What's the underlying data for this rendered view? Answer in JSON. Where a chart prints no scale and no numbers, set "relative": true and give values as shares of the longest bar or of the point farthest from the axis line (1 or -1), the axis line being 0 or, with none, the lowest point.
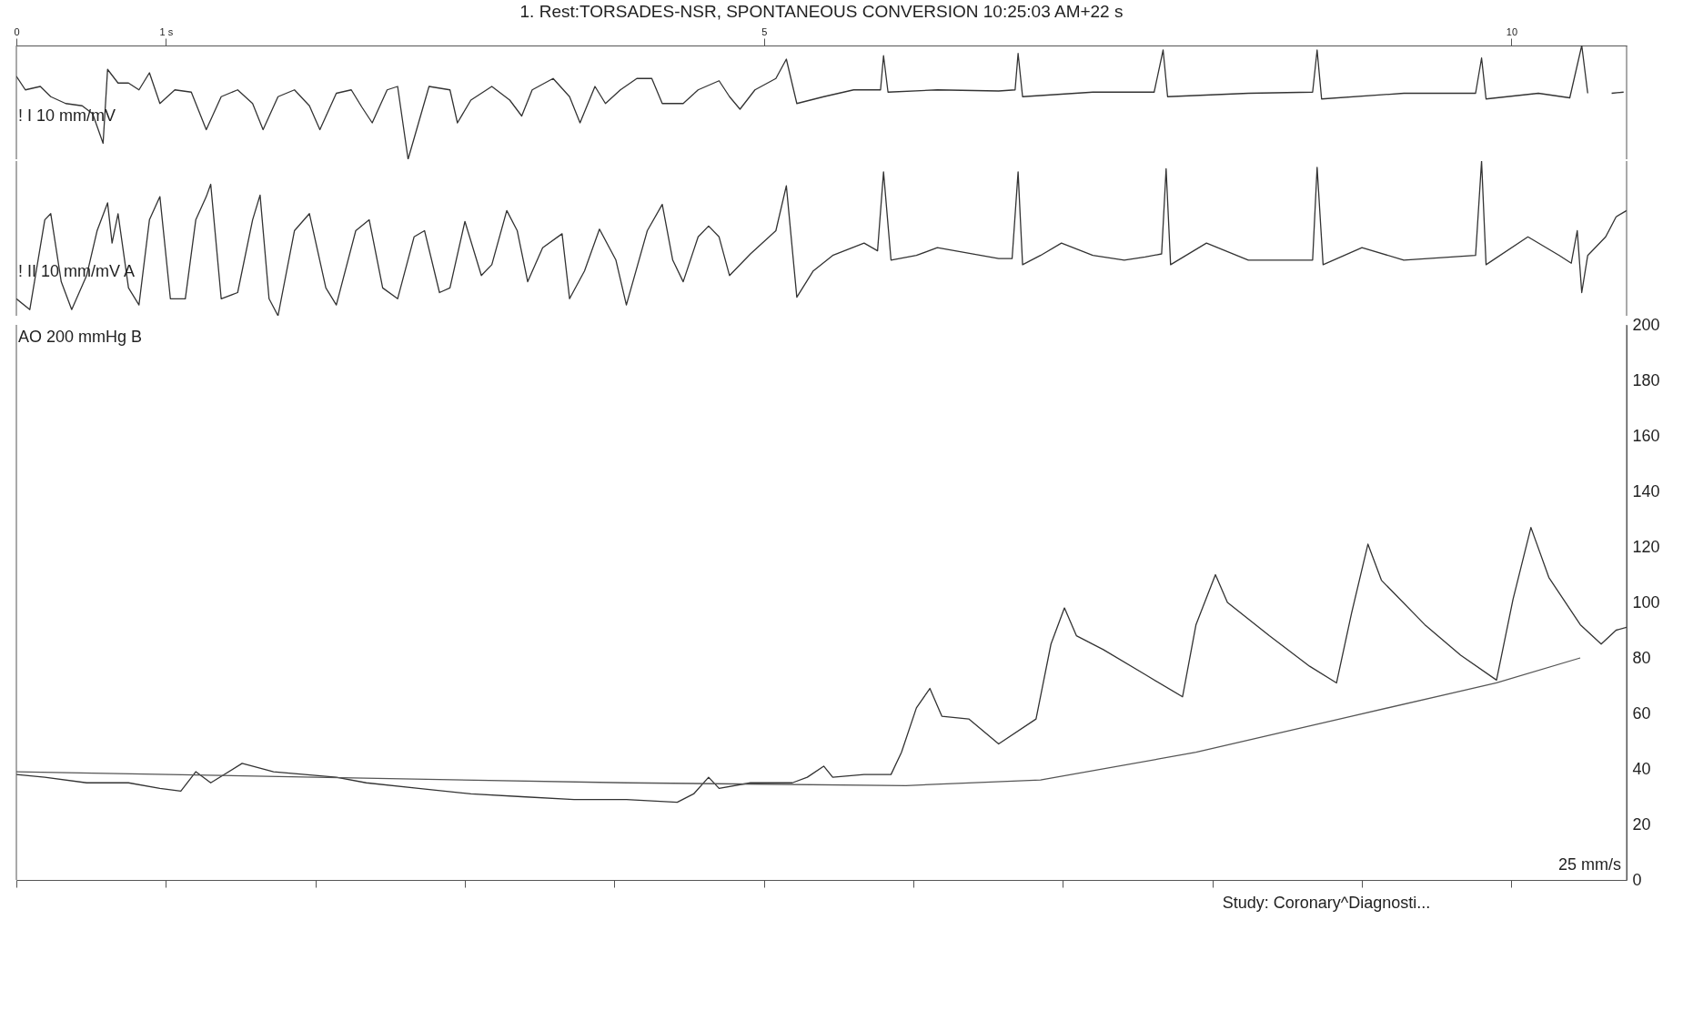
{
  "chart_data": [
    {
      "type": "line",
      "title": "1. Rest:TORSADES-NSR, SPONTANEOUS CONVERSION 10:25:03 AM+22 s",
      "ylabel": "! I  10 mm/mV",
      "relative": true,
      "xlim": [
        0,
        10.77
      ],
      "xticks": [
        0,
        {
          "value": 1,
          "label": "1 s"
        },
        5,
        10
      ],
      "series": [
        {
          "color": "#333333",
          "x": [
            0,
            0.06,
            0.16,
            0.23,
            0.33,
            0.44,
            0.51,
            0.58,
            0.61,
            0.68,
            0.75,
            0.82,
            0.89,
            0.96,
            1.06,
            1.17,
            1.27,
            1.37,
            1.48,
            1.58,
            1.65,
            1.75,
            1.86,
            1.96,
            2.03,
            2.14,
            2.24,
            2.31,
            2.38,
            2.48,
            2.55,
            2.62,
            2.69,
            2.76,
            2.9,
            2.95,
            3.04,
            3.18,
            3.3,
            3.38,
            3.45,
            3.59,
            3.7,
            3.77,
            3.87,
            3.94,
            4.04,
            4.15,
            4.25,
            4.32,
            4.46,
            4.56,
            4.7,
            4.77,
            4.84,
            4.94,
            5.08,
            5.15,
            5.22,
            5.4,
            5.6,
            5.78,
            5.8,
            5.83,
            6.16,
            6.57,
            6.68,
            6.7,
            6.73,
            7.2,
            7.61,
            7.67,
            7.7,
            8.24,
            8.67,
            8.7,
            8.73,
            9.28,
            9.76,
            9.8,
            9.83,
            10.18,
            10.39,
            10.47,
            10.51,
            10.6,
            10.67,
            10.75
          ],
          "values": [
            0.73,
            0.61,
            0.64,
            0.55,
            0.49,
            0.47,
            0.4,
            0.14,
            0.79,
            0.67,
            0.67,
            0.61,
            0.76,
            0.49,
            0.61,
            0.59,
            0.26,
            0.55,
            0.61,
            0.49,
            0.26,
            0.55,
            0.61,
            0.47,
            0.26,
            0.58,
            0.61,
            0.46,
            0.32,
            0.61,
            0.64,
            0,
            0.32,
            0.64,
            0.61,
            0.32,
            0.52,
            0.64,
            0.52,
            0.38,
            0.61,
            0.71,
            0.55,
            0.32,
            0.64,
            0.49,
            0.61,
            0.71,
            0.71,
            0.49,
            0.49,
            0.61,
            0.69,
            0.55,
            0.44,
            0.61,
            0.71,
            0.88,
            0.49,
            0.55,
            0.61,
            0.61,
            0.91,
            0.59,
            0.61,
            0.6,
            0.61,
            0.93,
            0.55,
            0.59,
            0.59,
            0.96,
            0.55,
            0.58,
            0.59,
            0.96,
            0.53,
            0.58,
            0.58,
            0.89,
            0.53,
            0.58,
            0.54,
            1,
            0.58,
            null,
            0.58,
            0.59
          ]
        }
      ]
    },
    {
      "type": "line",
      "ylabel": "! II  10 mm/mV   A",
      "relative": true,
      "xlim": [
        0,
        10.77
      ],
      "tick_labels": false,
      "series": [
        {
          "color": "#333333",
          "x": [
            0,
            0.09,
            0.19,
            0.23,
            0.3,
            0.37,
            0.47,
            0.54,
            0.61,
            0.64,
            0.68,
            0.75,
            0.82,
            0.89,
            0.96,
            1.03,
            1.13,
            1.2,
            1.27,
            1.3,
            1.37,
            1.48,
            1.58,
            1.63,
            1.69,
            1.75,
            1.86,
            1.96,
            2.07,
            2.14,
            2.27,
            2.36,
            2.45,
            2.55,
            2.66,
            2.73,
            2.83,
            2.9,
            3,
            3.11,
            3.18,
            3.28,
            3.35,
            3.42,
            3.52,
            3.65,
            3.7,
            3.8,
            3.9,
            4.01,
            4.08,
            4.22,
            4.32,
            4.39,
            4.46,
            4.56,
            4.63,
            4.7,
            4.77,
            4.91,
            5.08,
            5.15,
            5.22,
            5.33,
            5.46,
            5.67,
            5.76,
            5.8,
            5.85,
            6.02,
            6.16,
            6.57,
            6.66,
            6.7,
            6.73,
            6.85,
            6.99,
            7.2,
            7.41,
            7.55,
            7.66,
            7.69,
            7.72,
            7.96,
            8.24,
            8.52,
            8.67,
            8.7,
            8.74,
            9,
            9.28,
            9.76,
            9.8,
            9.83,
            10.11,
            10.32,
            10.4,
            10.44,
            10.47,
            10.51,
            10.63,
            10.7,
            10.77
          ],
          "values": [
            0.11,
            0.04,
            0.62,
            0.66,
            0.22,
            0.04,
            0.26,
            0.55,
            0.73,
            0.47,
            0.66,
            0.18,
            0.07,
            0.62,
            0.77,
            0.11,
            0.11,
            0.62,
            0.77,
            0.85,
            0.11,
            0.15,
            0.62,
            0.78,
            0.11,
            0,
            0.55,
            0.66,
            0.18,
            0.07,
            0.55,
            0.62,
            0.18,
            0.11,
            0.51,
            0.55,
            0.15,
            0.18,
            0.61,
            0.26,
            0.33,
            0.68,
            0.55,
            0.22,
            0.44,
            0.53,
            0.11,
            0.29,
            0.56,
            0.36,
            0.07,
            0.55,
            0.72,
            0.36,
            0.22,
            0.51,
            0.58,
            0.51,
            0.26,
            0.4,
            0.55,
            0.84,
            0.12,
            0.29,
            0.39,
            0.47,
            0.42,
            0.93,
            0.36,
            0.39,
            0.44,
            0.37,
            0.37,
            0.93,
            0.33,
            0.39,
            0.47,
            0.39,
            0.36,
            0.38,
            0.4,
            0.95,
            0.33,
            0.47,
            0.36,
            0.36,
            0.36,
            0.96,
            0.33,
            0.44,
            0.36,
            0.39,
            1,
            0.33,
            0.51,
            0.39,
            0.34,
            0.55,
            0.15,
            0.39,
            0.51,
            0.64,
            0.68
          ]
        }
      ]
    },
    {
      "type": "line",
      "ylabel": "AO  200 mmHg   B",
      "xlim": [
        0,
        10.77
      ],
      "ylim": [
        0,
        200
      ],
      "yticks": [
        0,
        20,
        40,
        60,
        80,
        100,
        120,
        140,
        160,
        180,
        200
      ],
      "tick_labels": "y",
      "xticks": [
        {
          "value": 0,
          "label": null
        },
        {
          "value": 1,
          "label": null
        },
        {
          "value": 2,
          "label": null
        },
        {
          "value": 3,
          "label": null
        },
        {
          "value": 4,
          "label": null
        },
        {
          "value": 5,
          "label": null
        },
        {
          "value": 6,
          "label": null
        },
        {
          "value": 7,
          "label": null
        },
        {
          "value": 8,
          "label": null
        },
        {
          "value": 9,
          "label": null
        },
        {
          "value": 10,
          "label": null
        }
      ],
      "annotations": [
        "25 mm/s",
        "Study: Coronary^Diagnosti..."
      ],
      "series": [
        {
          "color": "#333333",
          "x": [
            0,
            0.19,
            0.47,
            0.75,
            0.96,
            1.1,
            1.2,
            1.3,
            1.51,
            1.72,
            1.93,
            2.14,
            2.34,
            2.69,
            3.04,
            3.38,
            3.73,
            4.08,
            4.42,
            4.53,
            4.63,
            4.7,
            4.91,
            5.19,
            5.29,
            5.4,
            5.46,
            5.67,
            5.85,
            5.92,
            6.02,
            6.11,
            6.19,
            6.37,
            6.57,
            6.82,
            6.92,
            7.01,
            7.09,
            7.27,
            7.55,
            7.8,
            7.89,
            8.02,
            8.1,
            8.38,
            8.65,
            8.83,
            8.93,
            9.04,
            9.13,
            9.42,
            9.66,
            9.9,
            10.01,
            10.13,
            10.25,
            10.46,
            10.6,
            10.7,
            10.77
          ],
          "values": [
            38,
            37,
            35,
            35,
            33,
            32,
            39,
            35,
            42,
            39,
            38,
            37,
            35,
            33,
            31,
            30,
            29,
            29,
            28,
            31,
            37,
            33,
            35,
            35,
            37,
            41,
            37,
            38,
            38,
            46,
            62,
            69,
            59,
            58,
            49,
            58,
            85,
            98,
            88,
            83,
            74,
            66,
            92,
            110,
            100,
            88,
            77,
            71,
            96,
            121,
            108,
            92,
            81,
            72,
            101,
            127,
            109,
            92,
            85,
            90,
            91
          ]
        },
        {
          "color": "#555555",
          "x": [
            0,
            2,
            4.08,
            5.95,
            6.85,
            7.89,
            8.93,
            9.9,
            10.46
          ],
          "values": [
            39,
            37,
            35,
            34,
            36,
            46,
            59,
            71,
            80
          ]
        }
      ]
    }
  ]
}
